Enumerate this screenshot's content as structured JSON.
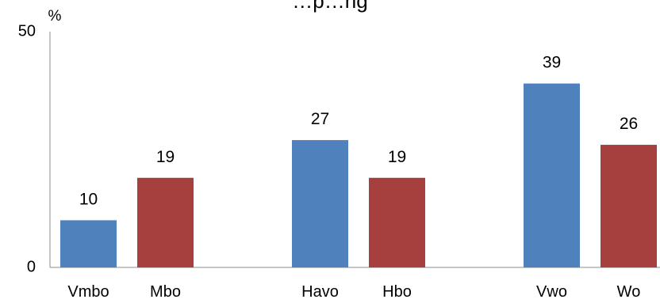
{
  "chart_data": {
    "type": "bar",
    "title": "…p…ng",
    "ylabel": "%",
    "ylim": [
      0,
      50
    ],
    "y_ticks": [
      0,
      50
    ],
    "grid": false,
    "legend": "none",
    "categories": [
      "Vmbo",
      "Mbo",
      "Havo",
      "Hbo",
      "Vwo",
      "Wo"
    ],
    "values": [
      10,
      19,
      27,
      19,
      39,
      26
    ],
    "groups": [
      [
        "Vmbo",
        "Mbo"
      ],
      [
        "Havo",
        "Hbo"
      ],
      [
        "Vwo",
        "Wo"
      ]
    ],
    "colors": {
      "first_in_group": "#4F81BD",
      "second_in_group": "#A5403F"
    }
  }
}
